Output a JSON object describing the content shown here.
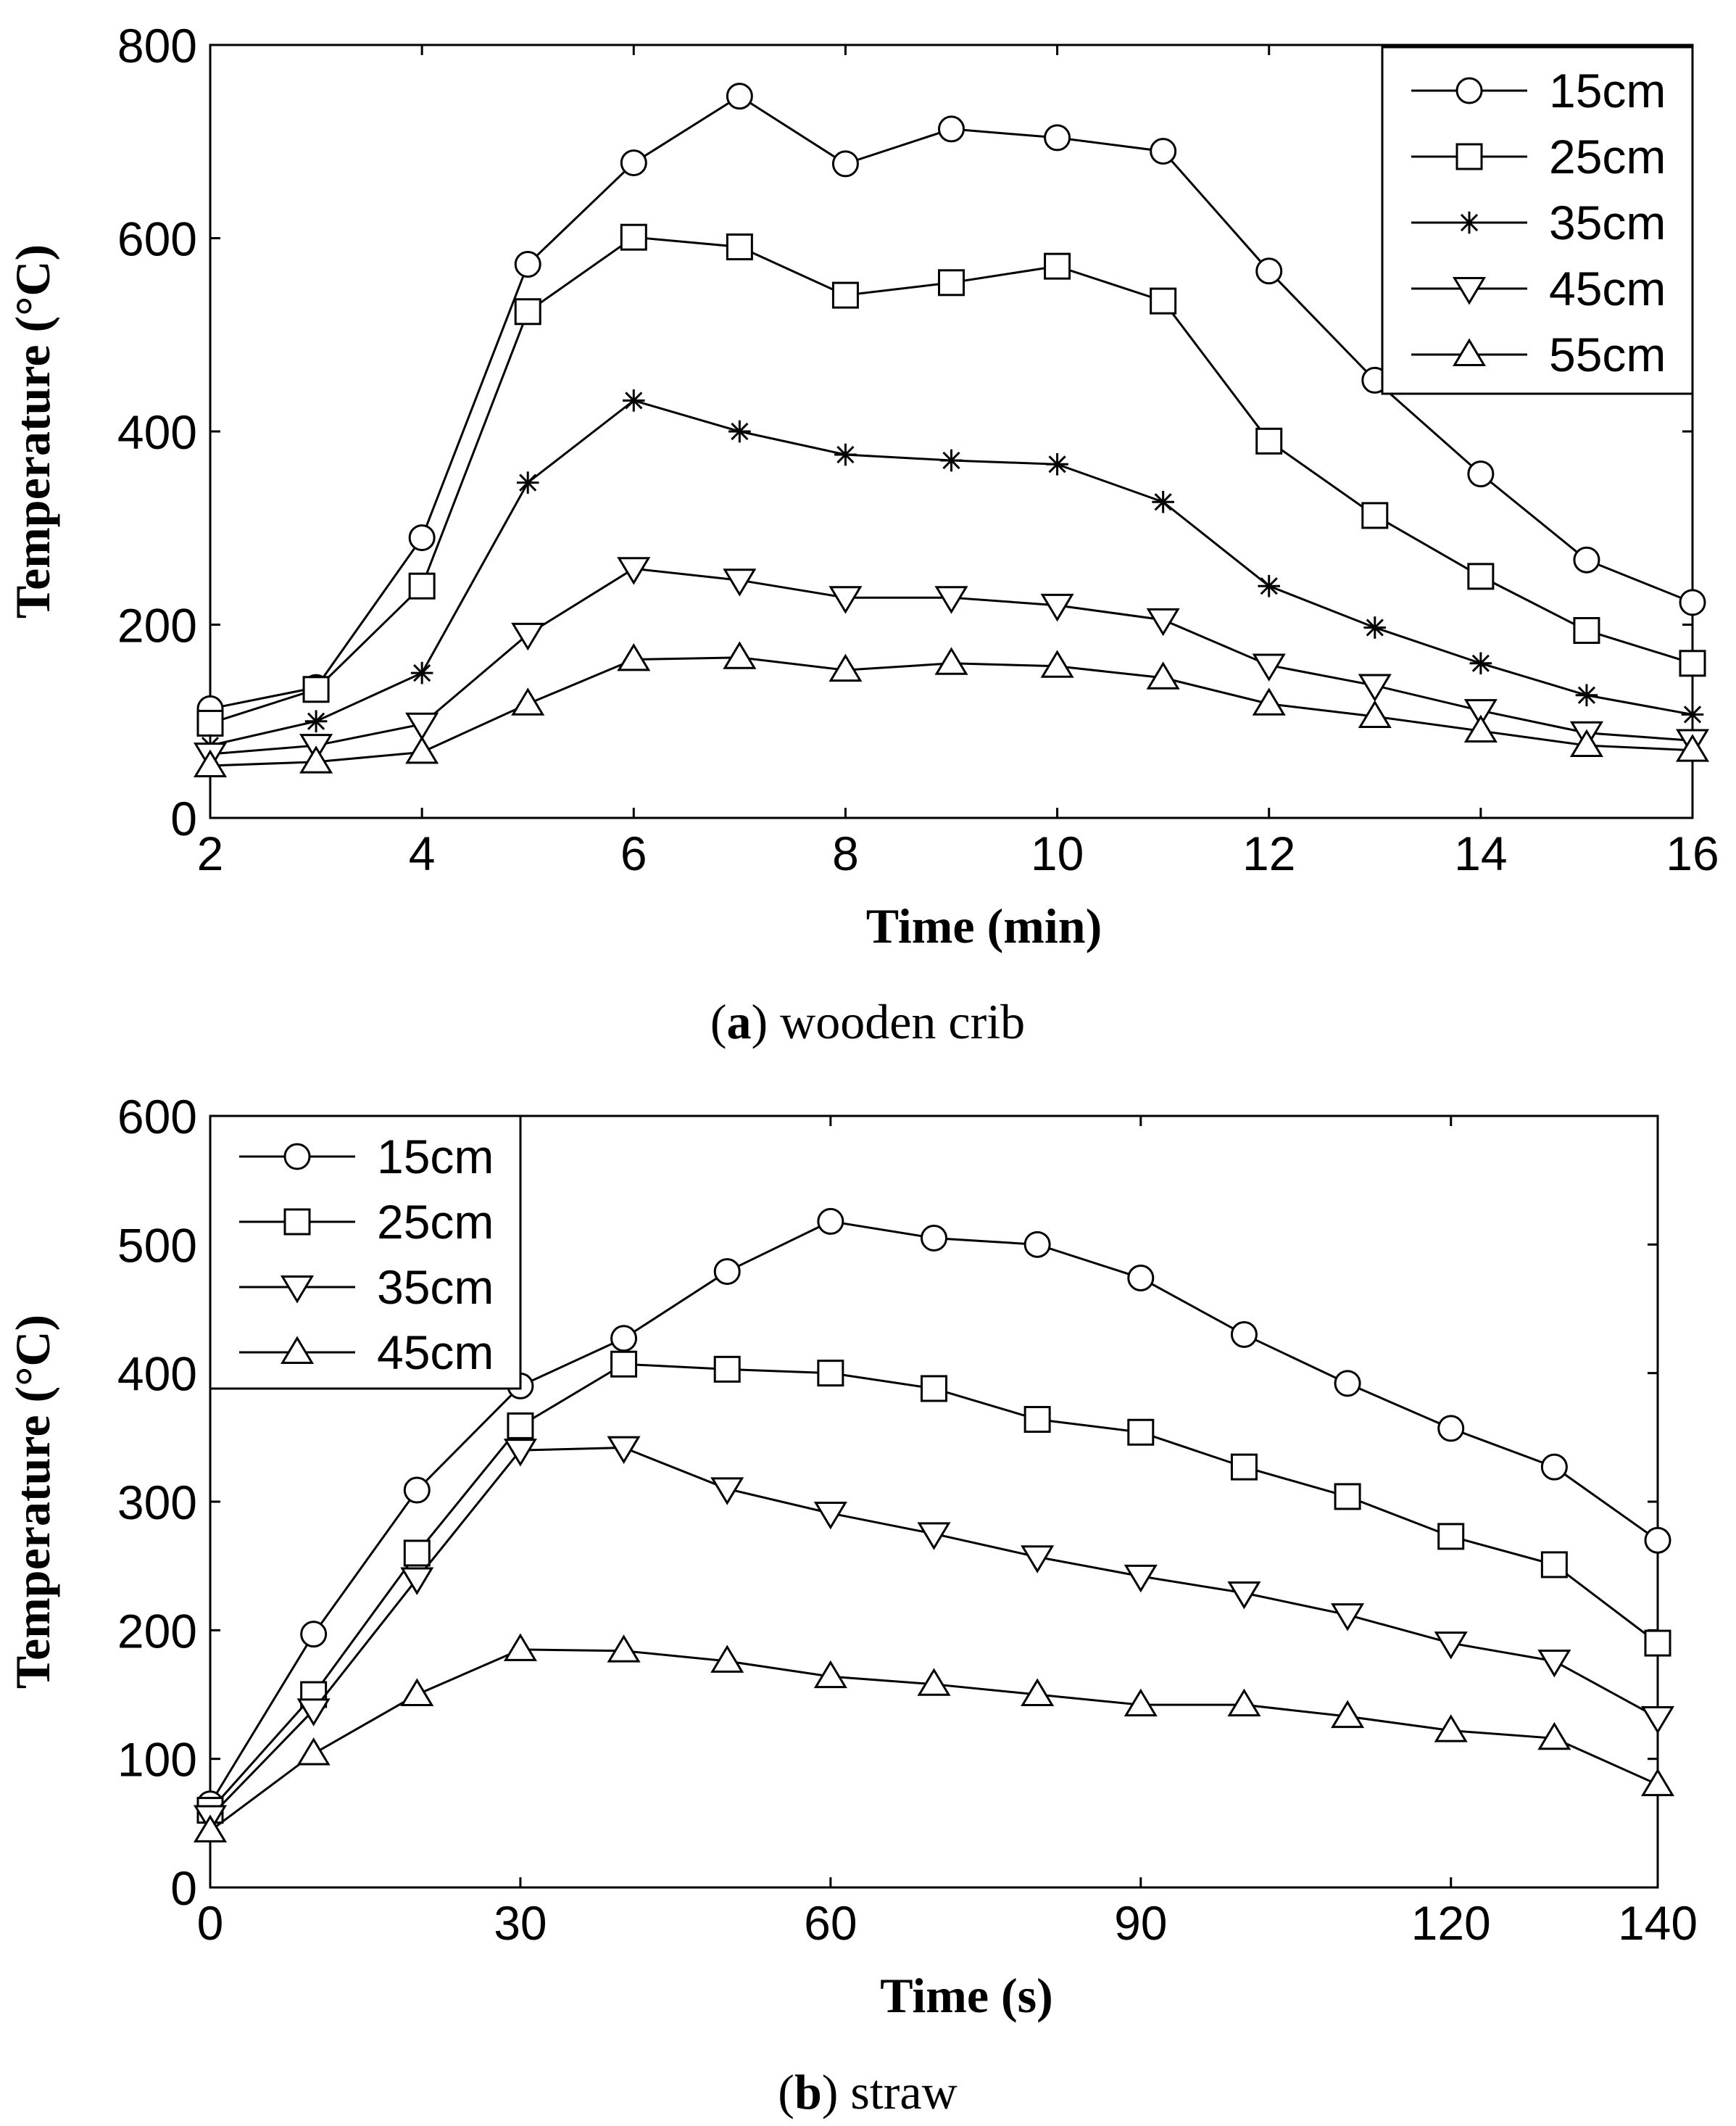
{
  "chart_data": [
    {
      "id": "a",
      "type": "line",
      "xlabel": "Time (min)",
      "ylabel": "Temperature (°C)",
      "xlim": [
        2,
        16
      ],
      "ylim": [
        0,
        800
      ],
      "xticks": [
        2,
        4,
        6,
        8,
        10,
        12,
        14,
        16
      ],
      "xtick_labels": [
        "2",
        "4",
        "6",
        "8",
        "10",
        "12",
        "14",
        "16"
      ],
      "yticks": [
        0,
        200,
        400,
        600,
        800
      ],
      "ytick_labels": [
        "0",
        "200",
        "400",
        "600",
        "800"
      ],
      "legend_position": "top-right",
      "caption_letter": "a",
      "caption_text": " wooden crib",
      "x": [
        2,
        3,
        4,
        5,
        6,
        7,
        8,
        9,
        10,
        11,
        12,
        13,
        14,
        15,
        16
      ],
      "series": [
        {
          "name": "15cm",
          "marker": "circle",
          "values": [
            113,
            135,
            290,
            573,
            678,
            747,
            677,
            713,
            704,
            690,
            566,
            453,
            356,
            267,
            223
          ]
        },
        {
          "name": "25cm",
          "marker": "square",
          "values": [
            98,
            133,
            240,
            524,
            601,
            591,
            541,
            554,
            571,
            535,
            390,
            313,
            250,
            194,
            160
          ]
        },
        {
          "name": "35cm",
          "marker": "star",
          "values": [
            75,
            100,
            150,
            347,
            432,
            400,
            376,
            370,
            366,
            327,
            240,
            197,
            160,
            127,
            107
          ]
        },
        {
          "name": "45cm",
          "marker": "triangle-down",
          "values": [
            66,
            75,
            97,
            190,
            258,
            246,
            228,
            228,
            220,
            205,
            158,
            137,
            111,
            88,
            80
          ]
        },
        {
          "name": "55cm",
          "marker": "triangle-up",
          "values": [
            54,
            58,
            68,
            118,
            164,
            166,
            153,
            160,
            157,
            145,
            118,
            105,
            90,
            75,
            70
          ]
        }
      ]
    },
    {
      "id": "b",
      "type": "line",
      "xlabel": "Time (s)",
      "ylabel": "Temperature (°C)",
      "xlim": [
        0,
        140
      ],
      "ylim": [
        0,
        600
      ],
      "xticks": [
        0,
        30,
        60,
        90,
        120,
        140
      ],
      "xtick_labels": [
        "0",
        "30",
        "60",
        "90",
        "120",
        "140"
      ],
      "yticks": [
        0,
        100,
        200,
        300,
        400,
        500,
        600
      ],
      "ytick_labels": [
        "0",
        "100",
        "200",
        "300",
        "400",
        "500",
        "600"
      ],
      "legend_position": "top-left",
      "caption_letter": "b",
      "caption_text": " straw",
      "x": [
        0,
        10,
        20,
        30,
        40,
        50,
        60,
        70,
        80,
        90,
        100,
        110,
        120,
        130,
        140
      ],
      "series": [
        {
          "name": "15cm",
          "marker": "circle",
          "values": [
            65,
            197,
            309,
            390,
            427,
            479,
            518,
            505,
            500,
            474,
            430,
            392,
            357,
            327,
            270
          ]
        },
        {
          "name": "25cm",
          "marker": "square",
          "values": [
            60,
            150,
            260,
            359,
            407,
            403,
            400,
            388,
            364,
            354,
            327,
            304,
            273,
            251,
            190
          ]
        },
        {
          "name": "35cm",
          "marker": "triangle-down",
          "values": [
            55,
            138,
            240,
            340,
            342,
            310,
            291,
            275,
            257,
            242,
            229,
            212,
            190,
            176,
            132
          ]
        },
        {
          "name": "45cm",
          "marker": "triangle-up",
          "values": [
            44,
            104,
            150,
            185,
            184,
            176,
            164,
            158,
            150,
            142,
            142,
            133,
            122,
            116,
            80
          ]
        }
      ]
    }
  ]
}
